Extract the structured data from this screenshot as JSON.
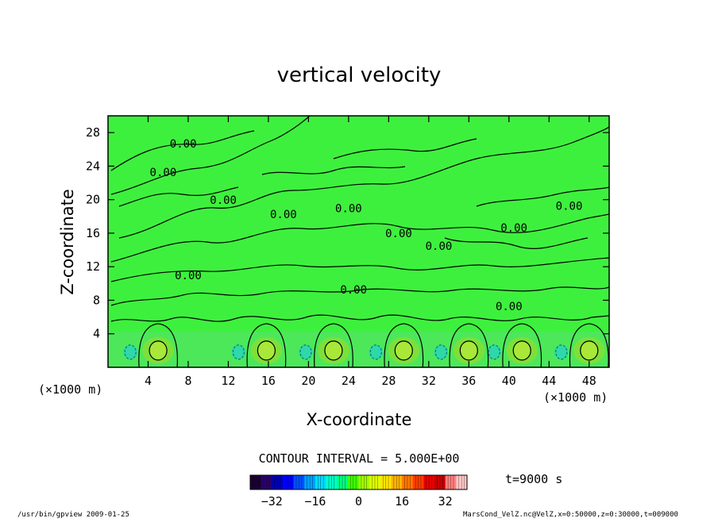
{
  "chart_data": {
    "type": "heatmap",
    "title": "vertical velocity",
    "xlabel": "X-coordinate",
    "ylabel": "Z-coordinate",
    "x_unit_left": "(×1000 m)",
    "x_unit_right": "(×1000 m)",
    "x_ticks": [
      4,
      8,
      12,
      16,
      20,
      24,
      28,
      32,
      36,
      40,
      44,
      48
    ],
    "y_ticks": [
      4,
      8,
      12,
      16,
      20,
      24,
      28
    ],
    "xlim": [
      0,
      50
    ],
    "ylim": [
      0,
      30
    ],
    "contour_interval_text": "CONTOUR INTERVAL = 5.000E+00",
    "time_text": "t=9000 s",
    "contour_labels": [
      {
        "x": 7.5,
        "z": 26.2,
        "text": "0.00"
      },
      {
        "x": 5.5,
        "z": 22.8,
        "text": "0.00"
      },
      {
        "x": 11.5,
        "z": 19.5,
        "text": "0.00"
      },
      {
        "x": 17.5,
        "z": 17.8,
        "text": "0.00"
      },
      {
        "x": 24.0,
        "z": 18.5,
        "text": "0.00"
      },
      {
        "x": 29.0,
        "z": 15.5,
        "text": "0.00"
      },
      {
        "x": 33.0,
        "z": 14.0,
        "text": "0.00"
      },
      {
        "x": 40.5,
        "z": 16.2,
        "text": "0.00"
      },
      {
        "x": 46.0,
        "z": 18.8,
        "text": "0.00"
      },
      {
        "x": 8.0,
        "z": 10.5,
        "text": "0.00"
      },
      {
        "x": 24.5,
        "z": 8.8,
        "text": "0.00"
      },
      {
        "x": 40.0,
        "z": 6.8,
        "text": "0.00"
      }
    ],
    "updraft_cells_x": [
      5,
      15.8,
      22.5,
      29.5,
      36,
      41.3,
      48
    ],
    "colorbar": {
      "min": -40,
      "max": 40,
      "ticks": [
        -32,
        -16,
        0,
        16,
        32
      ],
      "colors": [
        "#1a0033",
        "#2a006e",
        "#0000b4",
        "#0000ff",
        "#0050ff",
        "#00a0ff",
        "#00dcff",
        "#00ffc8",
        "#00ff80",
        "#40ff00",
        "#a0ff00",
        "#e0ff00",
        "#ffe600",
        "#ffb400",
        "#ff7800",
        "#ff3c00",
        "#e60000",
        "#c80000",
        "#ff8080",
        "#ffc8c8"
      ]
    }
  },
  "footer": {
    "left": "/usr/bin/gpview   2009-01-25",
    "right": "MarsCond_VelZ.nc@VelZ,x=0:50000,z=0:30000,t=009000"
  }
}
